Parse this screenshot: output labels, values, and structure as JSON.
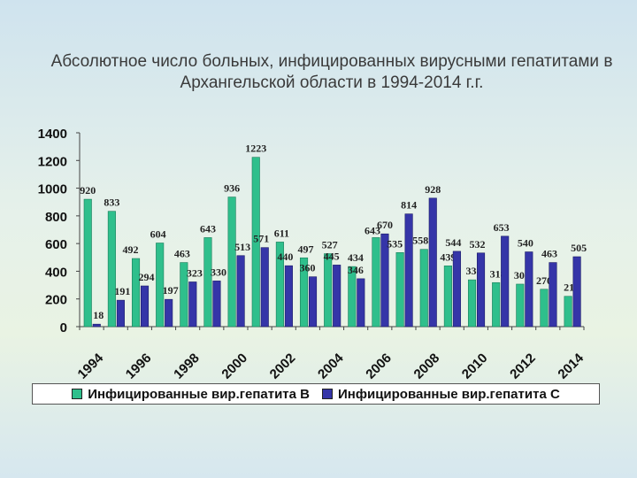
{
  "chart_data": {
    "type": "bar",
    "title_line1": "Абсолютное число больных, инфицированных вирусными гепатитами в",
    "title_line2": "Архангельской области в 1994-2014 г.г.",
    "x": [
      "1994",
      "1995",
      "1996",
      "1997",
      "1998",
      "1999",
      "2000",
      "2001",
      "2002",
      "2003",
      "2004",
      "2005",
      "2006",
      "2007",
      "2008",
      "2009",
      "2010",
      "2011",
      "2012",
      "2013",
      "2014"
    ],
    "x_tick_labels": [
      "1994",
      "1996",
      "1998",
      "2000",
      "2002",
      "2004",
      "2006",
      "2008",
      "2010",
      "2012",
      "2014"
    ],
    "y_ticks": [
      0,
      200,
      400,
      600,
      800,
      1000,
      1200,
      1400
    ],
    "ylim": [
      0,
      1400
    ],
    "series": [
      {
        "name": "Инфицированные вир.гепатита В",
        "color": "#2fbf8c",
        "values": [
          920,
          833,
          492,
          604,
          463,
          643,
          936,
          1223,
          611,
          497,
          527,
          434,
          643,
          535,
          558,
          439,
          338,
          318,
          307,
          270,
          219
        ]
      },
      {
        "name": "Инфицированные вир.гепатита С",
        "color": "#3535a8",
        "values": [
          18,
          191,
          294,
          197,
          323,
          330,
          513,
          571,
          440,
          360,
          445,
          346,
          670,
          814,
          928,
          544,
          532,
          653,
          540,
          463,
          505
        ]
      }
    ],
    "legend": "bottom",
    "grid": false
  }
}
